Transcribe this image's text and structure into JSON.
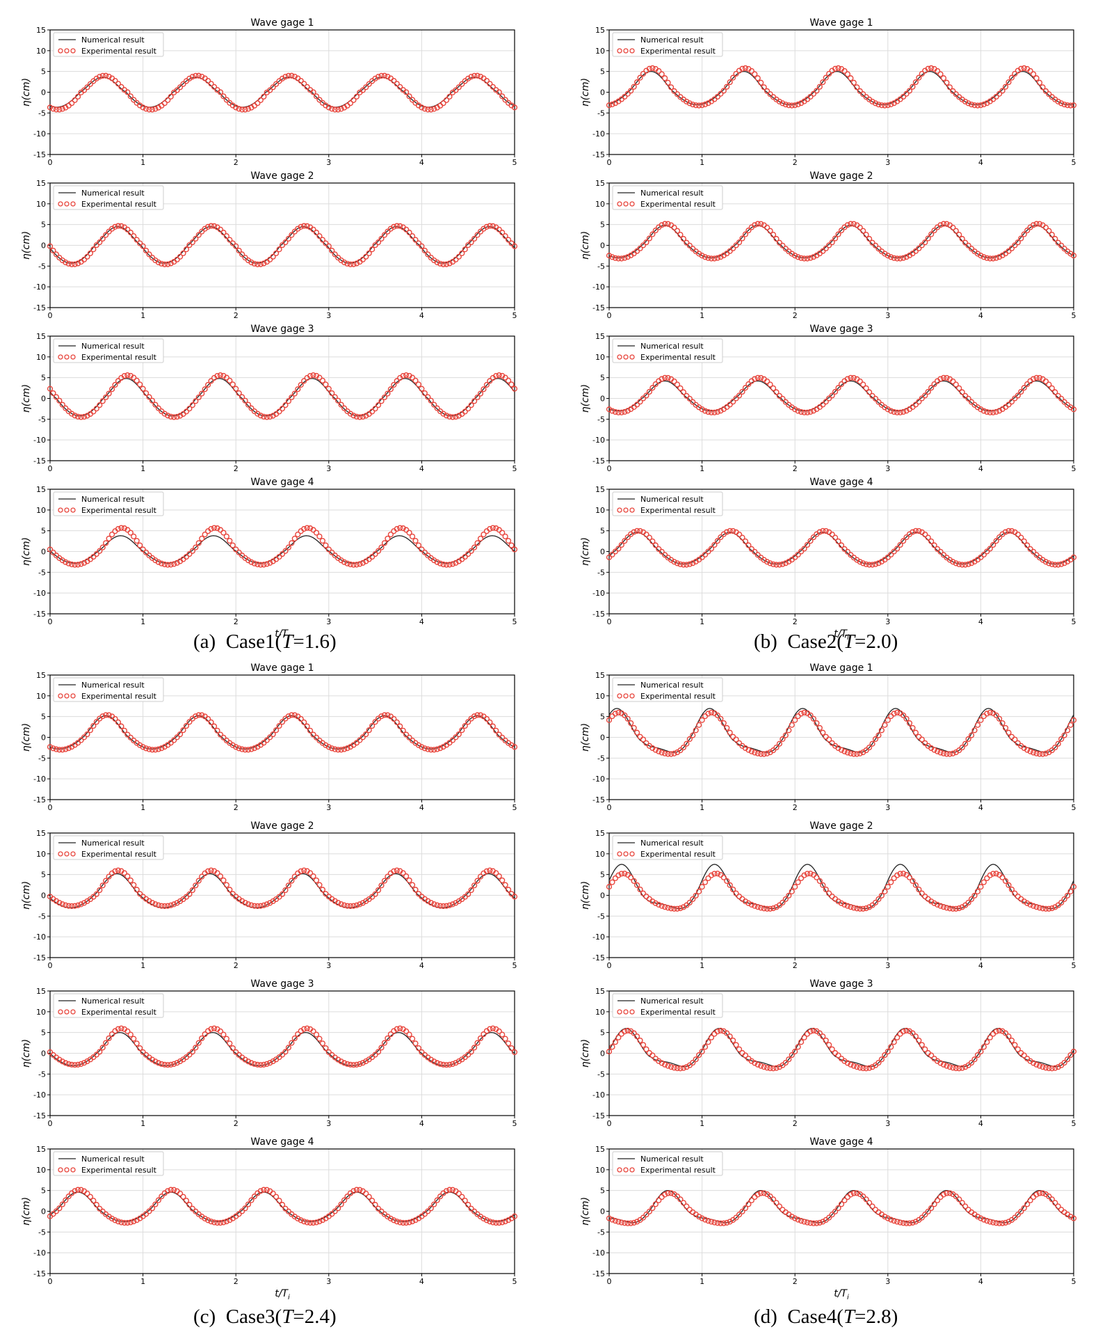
{
  "legend": {
    "numerical": "Numerical result",
    "experimental": "Experimental result"
  },
  "colors": {
    "numerical": "#222222",
    "experimental": "#e8453c",
    "grid": "#dcdcdc",
    "axis": "#000000"
  },
  "axis": {
    "ylabel": "η(cm)",
    "xlabel": "t/T_i",
    "xticks": [
      0,
      1,
      2,
      3,
      4,
      5
    ],
    "yticks": [
      15,
      10,
      5,
      0,
      -5,
      -10,
      -15
    ],
    "xlim": [
      0,
      5
    ],
    "ylim": [
      -15,
      15
    ]
  },
  "panels": [
    {
      "label": "(a)",
      "case": "Case1(",
      "t_sym": "T",
      "t_val": "=1.6)"
    },
    {
      "label": "(b)",
      "case": "Case2(",
      "t_sym": "T",
      "t_val": "=2.0)"
    },
    {
      "label": "(c)",
      "case": "Case3(",
      "t_sym": "T",
      "t_val": "=2.4)"
    },
    {
      "label": "(d)",
      "case": "Case4(",
      "t_sym": "T",
      "t_val": "=2.8)"
    }
  ],
  "chart_data": [
    {
      "type": "line",
      "panel": "a",
      "title": "Wave gage 1",
      "crest": 0.57,
      "num_amp": [
        3.6,
        -3.6
      ],
      "exp_amp": [
        4.0,
        -4.2
      ],
      "harmonic": 0.0,
      "xlim": [
        0,
        5
      ],
      "ylim": [
        -15,
        15
      ],
      "series": [
        {
          "name": "Numerical result"
        },
        {
          "name": "Experimental result"
        }
      ]
    },
    {
      "type": "line",
      "panel": "a",
      "title": "Wave gage 2",
      "crest": 0.73,
      "num_amp": [
        4.5,
        -4.3
      ],
      "exp_amp": [
        4.7,
        -4.6
      ],
      "harmonic": 0.0,
      "xlim": [
        0,
        5
      ],
      "ylim": [
        -15,
        15
      ],
      "series": [
        {
          "name": "Numerical result"
        },
        {
          "name": "Experimental result"
        }
      ]
    },
    {
      "type": "line",
      "panel": "a",
      "title": "Wave gage 3",
      "crest": 0.82,
      "num_amp": [
        4.8,
        -4.2
      ],
      "exp_amp": [
        5.6,
        -4.5
      ],
      "harmonic": 0.0,
      "xlim": [
        0,
        5
      ],
      "ylim": [
        -15,
        15
      ],
      "series": [
        {
          "name": "Numerical result"
        },
        {
          "name": "Experimental result"
        }
      ]
    },
    {
      "type": "line",
      "panel": "a",
      "title": "Wave gage 4",
      "crest": 0.76,
      "num_amp": [
        3.8,
        -2.8
      ],
      "exp_amp": [
        5.7,
        -3.2
      ],
      "harmonic": 0.0,
      "xlim": [
        0,
        5
      ],
      "ylim": [
        -15,
        15
      ],
      "series": [
        {
          "name": "Numerical result"
        },
        {
          "name": "Experimental result"
        }
      ]
    },
    {
      "type": "line",
      "panel": "b",
      "title": "Wave gage 1",
      "crest": 0.45,
      "num_amp": [
        5.0,
        -3.0
      ],
      "exp_amp": [
        5.8,
        -3.2
      ],
      "harmonic": 0.0,
      "xlim": [
        0,
        5
      ],
      "ylim": [
        -15,
        15
      ],
      "series": [
        {
          "name": "Numerical result"
        },
        {
          "name": "Experimental result"
        }
      ]
    },
    {
      "type": "line",
      "panel": "b",
      "title": "Wave gage 2",
      "crest": 0.6,
      "num_amp": [
        4.8,
        -3.0
      ],
      "exp_amp": [
        5.2,
        -3.2
      ],
      "harmonic": 0.0,
      "xlim": [
        0,
        5
      ],
      "ylim": [
        -15,
        15
      ],
      "series": [
        {
          "name": "Numerical result"
        },
        {
          "name": "Experimental result"
        }
      ]
    },
    {
      "type": "line",
      "panel": "b",
      "title": "Wave gage 3",
      "crest": 0.6,
      "num_amp": [
        4.2,
        -3.0
      ],
      "exp_amp": [
        5.0,
        -3.4
      ],
      "harmonic": 0.0,
      "xlim": [
        0,
        5
      ],
      "ylim": [
        -15,
        15
      ],
      "series": [
        {
          "name": "Numerical result"
        },
        {
          "name": "Experimental result"
        }
      ]
    },
    {
      "type": "line",
      "panel": "b",
      "title": "Wave gage 4",
      "crest": 0.3,
      "num_amp": [
        4.6,
        -3.0
      ],
      "exp_amp": [
        5.0,
        -3.2
      ],
      "harmonic": 0.0,
      "xlim": [
        0,
        5
      ],
      "ylim": [
        -15,
        15
      ],
      "series": [
        {
          "name": "Numerical result"
        },
        {
          "name": "Experimental result"
        }
      ]
    },
    {
      "type": "line",
      "panel": "c",
      "title": "Wave gage 1",
      "crest": 0.6,
      "num_amp": [
        5.2,
        -2.8
      ],
      "exp_amp": [
        5.4,
        -3.0
      ],
      "harmonic": 0.0,
      "xlim": [
        0,
        5
      ],
      "ylim": [
        -15,
        15
      ],
      "series": [
        {
          "name": "Numerical result"
        },
        {
          "name": "Experimental result"
        }
      ]
    },
    {
      "type": "line",
      "panel": "c",
      "title": "Wave gage 2",
      "crest": 0.72,
      "num_amp": [
        5.2,
        -3.0
      ],
      "exp_amp": [
        6.0,
        -2.6
      ],
      "harmonic": 0.0,
      "xlim": [
        0,
        5
      ],
      "ylim": [
        -15,
        15
      ],
      "series": [
        {
          "name": "Numerical result"
        },
        {
          "name": "Experimental result"
        }
      ]
    },
    {
      "type": "line",
      "panel": "c",
      "title": "Wave gage 3",
      "crest": 0.75,
      "num_amp": [
        5.0,
        -3.0
      ],
      "exp_amp": [
        6.0,
        -2.8
      ],
      "harmonic": 0.0,
      "xlim": [
        0,
        5
      ],
      "ylim": [
        -15,
        15
      ],
      "series": [
        {
          "name": "Numerical result"
        },
        {
          "name": "Experimental result"
        }
      ]
    },
    {
      "type": "line",
      "panel": "c",
      "title": "Wave gage 4",
      "crest": 0.3,
      "num_amp": [
        4.6,
        -2.5
      ],
      "exp_amp": [
        5.2,
        -2.8
      ],
      "harmonic": 0.0,
      "xlim": [
        0,
        5
      ],
      "ylim": [
        -15,
        15
      ],
      "series": [
        {
          "name": "Numerical result"
        },
        {
          "name": "Experimental result"
        }
      ]
    },
    {
      "type": "line",
      "panel": "d",
      "title": "Wave gage 1",
      "crest": 0.1,
      "num_amp": [
        6.0,
        -4.0
      ],
      "exp_amp": [
        5.5,
        -4.4
      ],
      "harmonic": 1.2,
      "xlim": [
        0,
        5
      ],
      "ylim": [
        -15,
        15
      ],
      "series": [
        {
          "name": "Numerical result"
        },
        {
          "name": "Experimental result"
        }
      ]
    },
    {
      "type": "line",
      "panel": "d",
      "title": "Wave gage 2",
      "crest": 0.15,
      "num_amp": [
        6.5,
        -3.5
      ],
      "exp_amp": [
        4.8,
        -3.6
      ],
      "harmonic": 1.2,
      "xlim": [
        0,
        5
      ],
      "ylim": [
        -15,
        15
      ],
      "series": [
        {
          "name": "Numerical result"
        },
        {
          "name": "Experimental result"
        }
      ]
    },
    {
      "type": "line",
      "panel": "d",
      "title": "Wave gage 3",
      "crest": 0.2,
      "num_amp": [
        5.0,
        -3.5
      ],
      "exp_amp": [
        5.0,
        -4.0
      ],
      "harmonic": 1.2,
      "xlim": [
        0,
        5
      ],
      "ylim": [
        -15,
        15
      ],
      "series": [
        {
          "name": "Numerical result"
        },
        {
          "name": "Experimental result"
        }
      ]
    },
    {
      "type": "line",
      "panel": "d",
      "title": "Wave gage 4",
      "crest": 0.65,
      "num_amp": [
        4.2,
        -3.0
      ],
      "exp_amp": [
        4.0,
        -3.2
      ],
      "harmonic": 1.0,
      "xlim": [
        0,
        5
      ],
      "ylim": [
        -15,
        15
      ],
      "series": [
        {
          "name": "Numerical result"
        },
        {
          "name": "Experimental result"
        }
      ]
    }
  ]
}
